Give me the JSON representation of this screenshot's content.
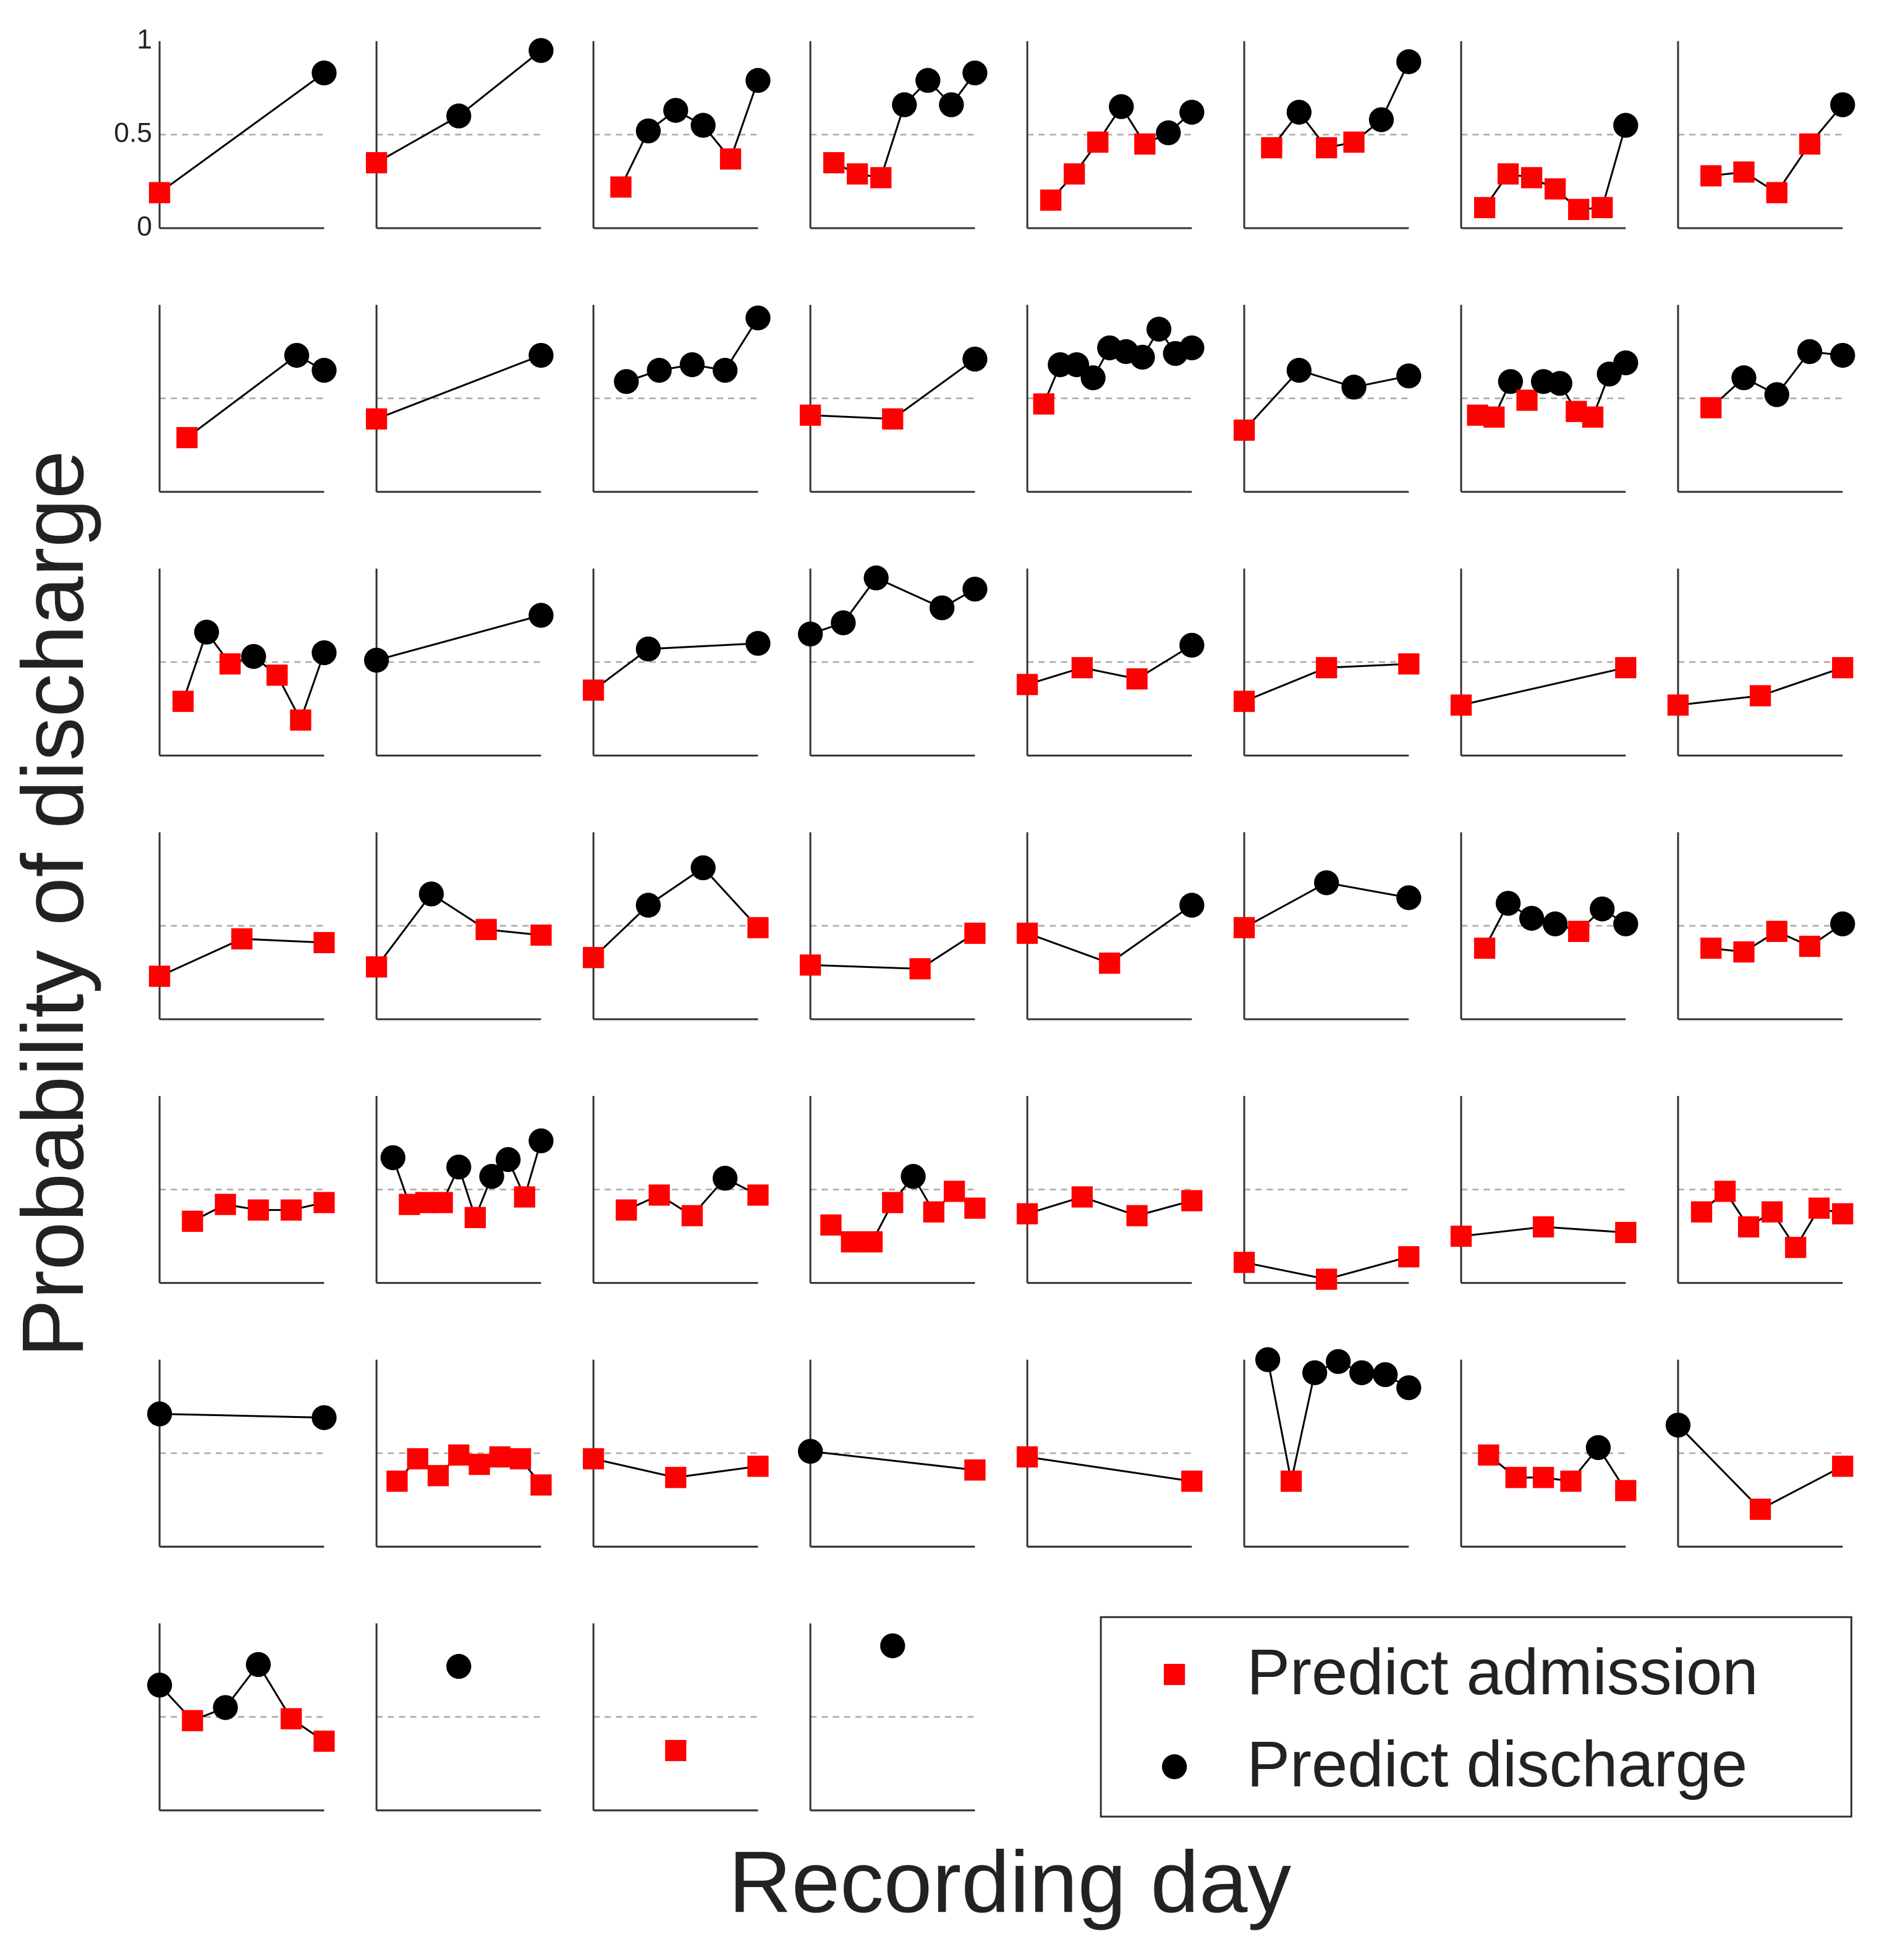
{
  "chart_data": {
    "type": "line",
    "ylabel": "Probability of discharge",
    "xlabel": "Recording day",
    "ylim": [
      0,
      1
    ],
    "yticks": [
      0,
      0.5,
      1
    ],
    "threshold": 0.5,
    "legend": "lower right",
    "series": [
      {
        "name": "Predict admission",
        "color": "#ff0000",
        "marker": "square"
      },
      {
        "name": "Predict discharge",
        "color": "#000000",
        "marker": "circle"
      }
    ],
    "columns": 8,
    "panels": [
      {
        "xlim": [
          1,
          2
        ],
        "x": [
          1,
          2
        ],
        "values": [
          0.19,
          0.83
        ]
      },
      {
        "xlim": [
          1,
          3
        ],
        "x": [
          1,
          2,
          3
        ],
        "values": [
          0.35,
          0.6,
          0.95
        ]
      },
      {
        "xlim": [
          0,
          6
        ],
        "x": [
          1,
          2,
          3,
          4,
          5,
          6
        ],
        "values": [
          0.22,
          0.52,
          0.63,
          0.55,
          0.37,
          0.79
        ]
      },
      {
        "xlim": [
          0,
          7
        ],
        "x": [
          1,
          2,
          3,
          4,
          5,
          6,
          7
        ],
        "values": [
          0.35,
          0.29,
          0.27,
          0.66,
          0.79,
          0.66,
          0.83
        ]
      },
      {
        "xlim": [
          0,
          7
        ],
        "x": [
          1,
          2,
          3,
          4,
          5,
          6,
          7
        ],
        "values": [
          0.15,
          0.29,
          0.46,
          0.65,
          0.45,
          0.51,
          0.62
        ]
      },
      {
        "xlim": [
          0,
          6
        ],
        "x": [
          1,
          2,
          3,
          4,
          5,
          6
        ],
        "values": [
          0.43,
          0.62,
          0.43,
          0.46,
          0.58,
          0.89
        ]
      },
      {
        "xlim": [
          0,
          7
        ],
        "x": [
          1,
          2,
          3,
          4,
          5,
          6,
          7
        ],
        "values": [
          0.11,
          0.29,
          0.27,
          0.21,
          0.1,
          0.11,
          0.55
        ]
      },
      {
        "xlim": [
          0,
          5
        ],
        "x": [
          1,
          2,
          3,
          4,
          5
        ],
        "values": [
          0.28,
          0.3,
          0.19,
          0.45,
          0.66
        ]
      },
      {
        "xlim": [
          0,
          6
        ],
        "x": [
          1,
          5,
          6
        ],
        "values": [
          0.29,
          0.73,
          0.65
        ]
      },
      {
        "xlim": [
          1,
          2
        ],
        "x": [
          1,
          2
        ],
        "values": [
          0.39,
          0.73
        ]
      },
      {
        "xlim": [
          0,
          5
        ],
        "x": [
          1,
          2,
          3,
          4,
          5
        ],
        "values": [
          0.59,
          0.65,
          0.68,
          0.65,
          0.93
        ]
      },
      {
        "xlim": [
          1,
          3
        ],
        "x": [
          1,
          2,
          3
        ],
        "values": [
          0.41,
          0.39,
          0.71
        ]
      },
      {
        "xlim": [
          0,
          10
        ],
        "x": [
          1,
          2,
          3,
          4,
          5,
          6,
          7,
          8,
          9,
          10
        ],
        "values": [
          0.47,
          0.68,
          0.68,
          0.61,
          0.77,
          0.75,
          0.72,
          0.87,
          0.74,
          0.77
        ]
      },
      {
        "xlim": [
          0,
          3
        ],
        "x": [
          0,
          1,
          2,
          3
        ],
        "values": [
          0.33,
          0.65,
          0.56,
          0.62
        ]
      },
      {
        "xlim": [
          0,
          10
        ],
        "x": [
          1,
          2,
          3,
          4,
          5,
          6,
          7,
          8,
          9,
          10
        ],
        "values": [
          0.41,
          0.4,
          0.59,
          0.49,
          0.59,
          0.58,
          0.43,
          0.4,
          0.63,
          0.69
        ]
      },
      {
        "xlim": [
          0,
          5
        ],
        "x": [
          1,
          2,
          3,
          4,
          5
        ],
        "values": [
          0.45,
          0.61,
          0.52,
          0.75,
          0.73
        ]
      },
      {
        "xlim": [
          0,
          7
        ],
        "x": [
          1,
          2,
          3,
          4,
          5,
          6,
          7
        ],
        "values": [
          0.29,
          0.66,
          0.49,
          0.53,
          0.43,
          0.19,
          0.55
        ]
      },
      {
        "xlim": [
          1,
          2
        ],
        "x": [
          1,
          2
        ],
        "values": [
          0.51,
          0.75
        ]
      },
      {
        "xlim": [
          0,
          3
        ],
        "x": [
          0,
          1,
          3
        ],
        "values": [
          0.35,
          0.57,
          0.6
        ]
      },
      {
        "xlim": [
          0,
          5
        ],
        "x": [
          0,
          1,
          2,
          4,
          5
        ],
        "values": [
          0.65,
          0.71,
          0.95,
          0.79,
          0.89
        ]
      },
      {
        "xlim": [
          0,
          3
        ],
        "x": [
          0,
          1,
          2,
          3
        ],
        "values": [
          0.38,
          0.47,
          0.41,
          0.59
        ]
      },
      {
        "xlim": [
          1,
          3
        ],
        "x": [
          1,
          2,
          3
        ],
        "values": [
          0.29,
          0.47,
          0.49
        ]
      },
      {
        "xlim": [
          1,
          2
        ],
        "x": [
          1,
          2
        ],
        "values": [
          0.27,
          0.47
        ]
      },
      {
        "xlim": [
          1,
          3
        ],
        "x": [
          1,
          2,
          3
        ],
        "values": [
          0.27,
          0.32,
          0.47
        ]
      },
      {
        "xlim": [
          1,
          3
        ],
        "x": [
          1,
          2,
          3
        ],
        "values": [
          0.23,
          0.43,
          0.41
        ]
      },
      {
        "xlim": [
          0,
          3
        ],
        "x": [
          0,
          1,
          2,
          3
        ],
        "values": [
          0.28,
          0.67,
          0.48,
          0.45
        ]
      },
      {
        "xlim": [
          0,
          3
        ],
        "x": [
          0,
          1,
          2,
          3
        ],
        "values": [
          0.33,
          0.61,
          0.81,
          0.49
        ]
      },
      {
        "xlim": [
          0,
          3
        ],
        "x": [
          0,
          2,
          3
        ],
        "values": [
          0.29,
          0.27,
          0.46
        ]
      },
      {
        "xlim": [
          1,
          3
        ],
        "x": [
          1,
          2,
          3
        ],
        "values": [
          0.46,
          0.3,
          0.61
        ]
      },
      {
        "xlim": [
          1,
          3
        ],
        "x": [
          1,
          2,
          3
        ],
        "values": [
          0.49,
          0.73,
          0.65
        ]
      },
      {
        "xlim": [
          0,
          7
        ],
        "x": [
          1,
          2,
          3,
          4,
          5,
          6,
          7
        ],
        "values": [
          0.38,
          0.62,
          0.54,
          0.51,
          0.47,
          0.59,
          0.51
        ]
      },
      {
        "xlim": [
          0,
          5
        ],
        "x": [
          1,
          2,
          3,
          4,
          5
        ],
        "values": [
          0.38,
          0.36,
          0.47,
          0.39,
          0.51
        ]
      },
      {
        "xlim": [
          0,
          5
        ],
        "x": [
          1,
          2,
          3,
          4,
          5
        ],
        "values": [
          0.33,
          0.42,
          0.39,
          0.39,
          0.43
        ]
      },
      {
        "xlim": [
          0,
          10
        ],
        "x": [
          1,
          2,
          3,
          4,
          5,
          6,
          7,
          8,
          9,
          10
        ],
        "values": [
          0.67,
          0.42,
          0.43,
          0.43,
          0.62,
          0.35,
          0.57,
          0.66,
          0.46,
          0.76
        ]
      },
      {
        "xlim": [
          0,
          5
        ],
        "x": [
          1,
          2,
          3,
          4,
          5
        ],
        "values": [
          0.39,
          0.47,
          0.36,
          0.56,
          0.47
        ]
      },
      {
        "xlim": [
          0,
          8
        ],
        "x": [
          1,
          2,
          3,
          4,
          5,
          6,
          7,
          8
        ],
        "values": [
          0.31,
          0.22,
          0.22,
          0.43,
          0.57,
          0.38,
          0.49,
          0.4
        ]
      },
      {
        "xlim": [
          0,
          3
        ],
        "x": [
          0,
          1,
          2,
          3
        ],
        "values": [
          0.37,
          0.46,
          0.36,
          0.44
        ]
      },
      {
        "xlim": [
          1,
          3
        ],
        "x": [
          1,
          2,
          3
        ],
        "values": [
          0.11,
          0.02,
          0.14
        ]
      },
      {
        "xlim": [
          1,
          3
        ],
        "x": [
          1,
          2,
          3
        ],
        "values": [
          0.25,
          0.3,
          0.27
        ]
      },
      {
        "xlim": [
          0,
          7
        ],
        "x": [
          1,
          2,
          3,
          4,
          5,
          6,
          7
        ],
        "values": [
          0.38,
          0.49,
          0.3,
          0.38,
          0.19,
          0.4,
          0.37
        ]
      },
      {
        "xlim": [
          1,
          2
        ],
        "x": [
          1,
          2
        ],
        "values": [
          0.71,
          0.69
        ]
      },
      {
        "xlim": [
          0,
          8
        ],
        "x": [
          1,
          2,
          3,
          4,
          5,
          6,
          7,
          8
        ],
        "values": [
          0.35,
          0.47,
          0.38,
          0.49,
          0.44,
          0.48,
          0.47,
          0.33
        ]
      },
      {
        "xlim": [
          1,
          3
        ],
        "x": [
          1,
          2,
          3
        ],
        "values": [
          0.47,
          0.37,
          0.43
        ]
      },
      {
        "xlim": [
          1,
          2
        ],
        "x": [
          1,
          2
        ],
        "values": [
          0.51,
          0.41
        ]
      },
      {
        "xlim": [
          1,
          2
        ],
        "x": [
          1,
          2
        ],
        "values": [
          0.48,
          0.35
        ]
      },
      {
        "xlim": [
          0,
          7
        ],
        "x": [
          1,
          2,
          3,
          4,
          5,
          6,
          7
        ],
        "values": [
          1.0,
          0.35,
          0.93,
          0.99,
          0.93,
          0.92,
          0.85
        ]
      },
      {
        "xlim": [
          0,
          6
        ],
        "x": [
          1,
          2,
          3,
          4,
          5,
          6
        ],
        "values": [
          0.49,
          0.37,
          0.37,
          0.35,
          0.53,
          0.3
        ]
      },
      {
        "xlim": [
          1,
          3
        ],
        "x": [
          1,
          2,
          3
        ],
        "values": [
          0.65,
          0.2,
          0.43
        ]
      },
      {
        "xlim": [
          0,
          5
        ],
        "x": [
          0,
          1,
          2,
          3,
          4,
          5
        ],
        "values": [
          0.67,
          0.48,
          0.55,
          0.78,
          0.49,
          0.37
        ]
      },
      {
        "xlim": [
          0,
          2
        ],
        "x": [
          1
        ],
        "values": [
          0.77
        ]
      },
      {
        "xlim": [
          0,
          2
        ],
        "x": [
          1
        ],
        "values": [
          0.32
        ]
      },
      {
        "xlim": [
          0,
          2
        ],
        "x": [
          1
        ],
        "values": [
          0.88
        ]
      }
    ]
  }
}
